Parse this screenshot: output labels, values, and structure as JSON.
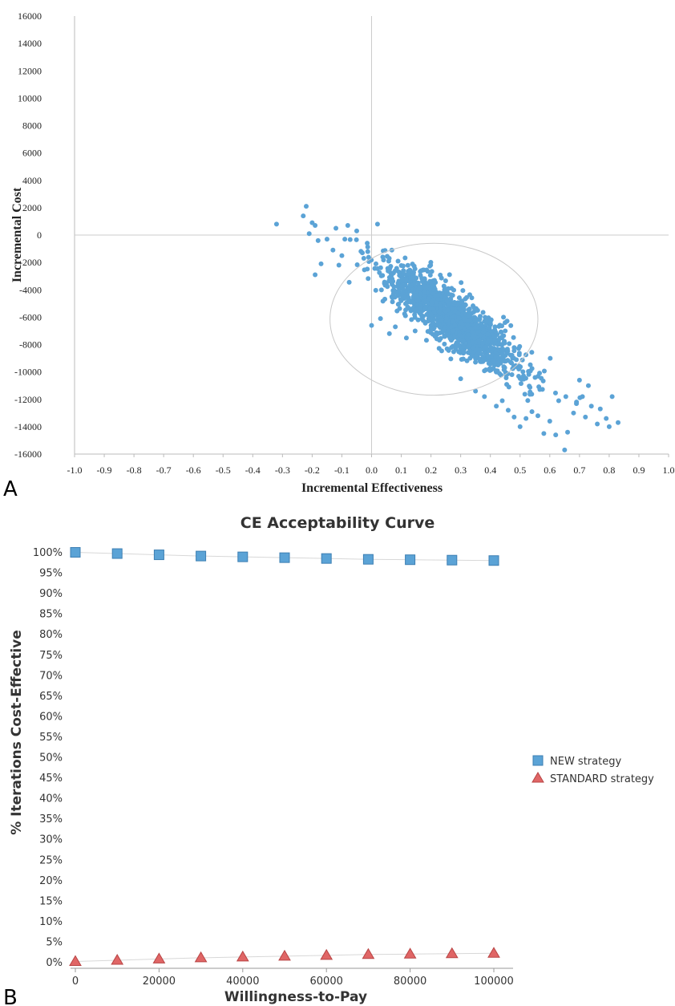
{
  "chart_data": [
    {
      "panel_label": "A",
      "type": "scatter",
      "title": "",
      "xlabel": "Incremental Effectiveness",
      "ylabel": "Incremental Cost",
      "xlim": [
        -1.0,
        1.0
      ],
      "ylim": [
        -16000,
        16000
      ],
      "x_ticks": [
        "-1.0",
        "-0.9",
        "-0.8",
        "-0.7",
        "-0.6",
        "-0.5",
        "-0.4",
        "-0.3",
        "-0.2",
        "-0.1",
        "0.0",
        "0.1",
        "0.2",
        "0.3",
        "0.4",
        "0.5",
        "0.6",
        "0.7",
        "0.8",
        "0.9",
        "1.0"
      ],
      "y_ticks": [
        "16000",
        "14000",
        "12000",
        "10000",
        "8000",
        "6000",
        "4000",
        "2000",
        "0",
        "-2000",
        "-4000",
        "-6000",
        "-8000",
        "-10000",
        "-12000",
        "-14000",
        "-16000"
      ],
      "point_color": "#5ba3d6",
      "ellipse": {
        "center": [
          0.21,
          -6150
        ],
        "semi_x": 0.35,
        "semi_y": 5550
      },
      "cloud": {
        "x_center": 0.27,
        "x_spread": 0.22,
        "slope": -14500,
        "intercept": -2200,
        "y_noise": 1000,
        "count": 1500
      },
      "points": [
        {
          "x": -0.32,
          "y": 800
        },
        {
          "x": -0.22,
          "y": 2100
        },
        {
          "x": -0.23,
          "y": 1400
        },
        {
          "x": -0.2,
          "y": 900
        },
        {
          "x": -0.19,
          "y": 700
        },
        {
          "x": -0.21,
          "y": 100
        },
        {
          "x": -0.18,
          "y": -400
        },
        {
          "x": -0.15,
          "y": -300
        },
        {
          "x": -0.12,
          "y": 500
        },
        {
          "x": -0.17,
          "y": -2100
        },
        {
          "x": -0.19,
          "y": -2900
        },
        {
          "x": -0.13,
          "y": -1100
        },
        {
          "x": -0.08,
          "y": 700
        },
        {
          "x": -0.05,
          "y": 300
        },
        {
          "x": -0.09,
          "y": -300
        },
        {
          "x": -0.1,
          "y": -1500
        },
        {
          "x": -0.11,
          "y": -2200
        },
        {
          "x": 0.02,
          "y": 800
        },
        {
          "x": 0.76,
          "y": -13800
        },
        {
          "x": 0.79,
          "y": -13400
        },
        {
          "x": 0.81,
          "y": -11800
        },
        {
          "x": 0.83,
          "y": -13700
        },
        {
          "x": 0.8,
          "y": -14000
        },
        {
          "x": 0.74,
          "y": -12500
        },
        {
          "x": 0.77,
          "y": -12700
        },
        {
          "x": 0.71,
          "y": -11800
        },
        {
          "x": 0.73,
          "y": -11000
        },
        {
          "x": 0.7,
          "y": -10600
        },
        {
          "x": 0.65,
          "y": -15700
        },
        {
          "x": 0.62,
          "y": -14600
        },
        {
          "x": 0.58,
          "y": -14500
        },
        {
          "x": 0.66,
          "y": -14400
        },
        {
          "x": 0.6,
          "y": -13600
        },
        {
          "x": 0.56,
          "y": -13200
        },
        {
          "x": 0.52,
          "y": -13400
        },
        {
          "x": 0.5,
          "y": -14000
        },
        {
          "x": 0.54,
          "y": -12900
        },
        {
          "x": 0.48,
          "y": -13300
        },
        {
          "x": 0.46,
          "y": -12800
        },
        {
          "x": 0.44,
          "y": -12100
        },
        {
          "x": 0.42,
          "y": -12500
        },
        {
          "x": 0.38,
          "y": -11800
        },
        {
          "x": 0.35,
          "y": -11400
        },
        {
          "x": 0.68,
          "y": -13000
        },
        {
          "x": 0.69,
          "y": -12200
        },
        {
          "x": 0.72,
          "y": -13300
        },
        {
          "x": 0.63,
          "y": -12100
        },
        {
          "x": 0.3,
          "y": -10500
        },
        {
          "x": 0.0,
          "y": -6600
        },
        {
          "x": 0.03,
          "y": -6100
        },
        {
          "x": 0.06,
          "y": -7200
        },
        {
          "x": 0.08,
          "y": -6700
        },
        {
          "x": 0.36,
          "y": -6200
        },
        {
          "x": 0.4,
          "y": -6400
        },
        {
          "x": 0.33,
          "y": -5400
        },
        {
          "x": 0.3,
          "y": -4900
        },
        {
          "x": 0.45,
          "y": -7000
        }
      ]
    },
    {
      "panel_label": "B",
      "type": "line",
      "title": "CE Acceptability Curve",
      "xlabel": "Willingness-to-Pay",
      "ylabel": "% Iterations Cost-Effective",
      "xlim": [
        0,
        100000
      ],
      "ylim": [
        0,
        100
      ],
      "x": [
        0,
        10000,
        20000,
        30000,
        40000,
        50000,
        60000,
        70000,
        80000,
        90000,
        100000
      ],
      "x_ticks": [
        "0",
        "20000",
        "40000",
        "60000",
        "80000",
        "100000"
      ],
      "y_ticks": [
        "100%",
        "95%",
        "90%",
        "85%",
        "80%",
        "75%",
        "70%",
        "65%",
        "60%",
        "55%",
        "50%",
        "45%",
        "40%",
        "35%",
        "30%",
        "25%",
        "20%",
        "15%",
        "10%",
        "5%",
        "0%"
      ],
      "legend_position": "right",
      "series": [
        {
          "name": "NEW strategy",
          "marker": "square",
          "color": "#5ba3d6",
          "values": [
            99.9,
            99.6,
            99.3,
            99.0,
            98.8,
            98.6,
            98.4,
            98.2,
            98.1,
            98.0,
            97.9
          ]
        },
        {
          "name": "STANDARD strategy",
          "marker": "triangle",
          "color": "#e06666",
          "values": [
            0.1,
            0.4,
            0.7,
            1.0,
            1.2,
            1.4,
            1.6,
            1.8,
            1.9,
            2.0,
            2.1
          ]
        }
      ]
    }
  ]
}
